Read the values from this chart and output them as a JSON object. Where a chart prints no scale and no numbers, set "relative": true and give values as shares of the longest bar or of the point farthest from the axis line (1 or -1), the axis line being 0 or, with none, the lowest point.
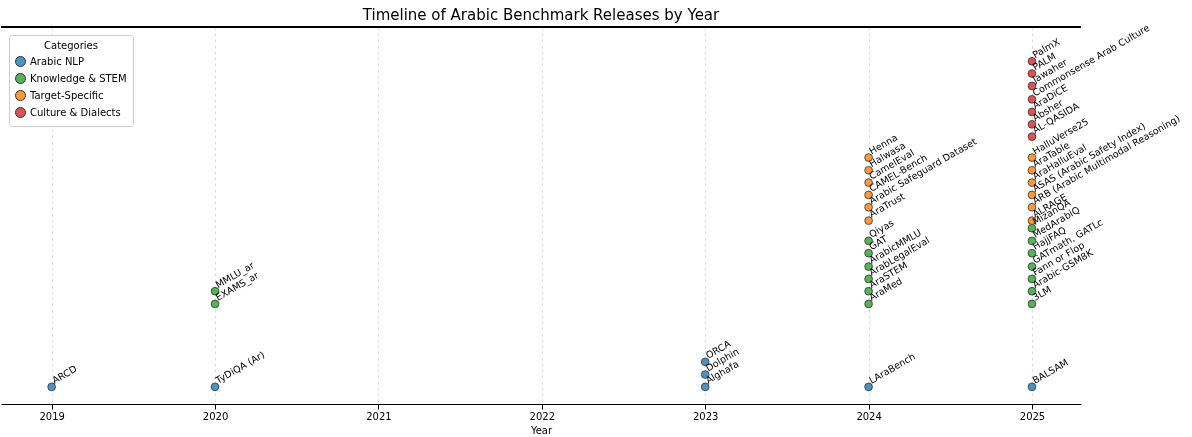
{
  "chart_data": {
    "type": "scatter",
    "title": "Timeline of Arabic Benchmark Releases by Year",
    "xlabel": "Year",
    "legend_title": "Categories",
    "legend": "top left",
    "grid": "x",
    "marker": "circle",
    "relative": true,
    "xlim": [
      2018.69,
      2025.3
    ],
    "xticks": [
      2019,
      2020,
      2021,
      2022,
      2023,
      2024,
      2025
    ],
    "series": [
      {
        "name": "Arabic NLP",
        "color": "#4c92c3",
        "x": [
          2019,
          2020,
          2023,
          2023,
          2023,
          2024,
          2025
        ],
        "values": [
          0.05,
          0.05,
          0.05,
          0.086,
          0.123,
          0.05,
          0.05
        ]
      },
      {
        "name": "Knowledge & STEM",
        "color": "#56b356",
        "x": [
          2020,
          2020,
          2024,
          2024,
          2024,
          2024,
          2024,
          2024,
          2025,
          2025,
          2025,
          2025,
          2025,
          2025,
          2025
        ],
        "values": [
          0.292,
          0.329,
          0.292,
          0.329,
          0.365,
          0.401,
          0.44,
          0.476,
          0.292,
          0.329,
          0.365,
          0.401,
          0.44,
          0.476,
          0.513
        ]
      },
      {
        "name": "Target-Specific",
        "color": "#ff993e",
        "x": [
          2024,
          2024,
          2024,
          2024,
          2024,
          2024,
          2025,
          2025,
          2025,
          2025,
          2025,
          2025
        ],
        "values": [
          0.535,
          0.574,
          0.61,
          0.646,
          0.682,
          0.719,
          0.535,
          0.574,
          0.61,
          0.646,
          0.682,
          0.719
        ]
      },
      {
        "name": "Culture & Dialects",
        "color": "#de5253",
        "x": [
          2025,
          2025,
          2025,
          2025,
          2025,
          2025,
          2025
        ],
        "values": [
          0.78,
          0.816,
          0.852,
          0.889,
          0.928,
          0.964,
          1.0
        ]
      }
    ],
    "annotations": [
      {
        "text": "ARCD",
        "x": 2019,
        "y": 0.05
      },
      {
        "text": "TyDiQA (Ar)",
        "x": 2020,
        "y": 0.05
      },
      {
        "text": "Alghafa",
        "x": 2023,
        "y": 0.05
      },
      {
        "text": "Dolphin",
        "x": 2023,
        "y": 0.086
      },
      {
        "text": "ORCA",
        "x": 2023,
        "y": 0.123
      },
      {
        "text": "LAraBench",
        "x": 2024,
        "y": 0.05
      },
      {
        "text": "BALSAM",
        "x": 2025,
        "y": 0.05
      },
      {
        "text": "EXAMS_ar",
        "x": 2020,
        "y": 0.292
      },
      {
        "text": "MMLU_ar",
        "x": 2020,
        "y": 0.329
      },
      {
        "text": "AraMed",
        "x": 2024,
        "y": 0.292
      },
      {
        "text": "AraSTEM",
        "x": 2024,
        "y": 0.329
      },
      {
        "text": "ArabLegalEval",
        "x": 2024,
        "y": 0.365
      },
      {
        "text": "ArabicMMLU",
        "x": 2024,
        "y": 0.401
      },
      {
        "text": "GAT",
        "x": 2024,
        "y": 0.44
      },
      {
        "text": "Qiyas",
        "x": 2024,
        "y": 0.476
      },
      {
        "text": "3LM",
        "x": 2025,
        "y": 0.292
      },
      {
        "text": "Arabic-GSM8K",
        "x": 2025,
        "y": 0.329
      },
      {
        "text": "Fann or Flop",
        "x": 2025,
        "y": 0.365
      },
      {
        "text": "GATmath, GATLc",
        "x": 2025,
        "y": 0.401
      },
      {
        "text": "HajjFAQ",
        "x": 2025,
        "y": 0.44
      },
      {
        "text": "MedArabiQ",
        "x": 2025,
        "y": 0.476
      },
      {
        "text": "MizanQA",
        "x": 2025,
        "y": 0.513
      },
      {
        "text": "AraTrust",
        "x": 2024,
        "y": 0.535
      },
      {
        "text": "Arabic Safeguard Dataset",
        "x": 2024,
        "y": 0.574
      },
      {
        "text": "CAMEL-Bench",
        "x": 2024,
        "y": 0.61
      },
      {
        "text": "CamelEval",
        "x": 2024,
        "y": 0.646
      },
      {
        "text": "Halwasa",
        "x": 2024,
        "y": 0.682
      },
      {
        "text": "Henna",
        "x": 2024,
        "y": 0.719
      },
      {
        "text": "ALRAGE",
        "x": 2025,
        "y": 0.535
      },
      {
        "text": "ARB (Arabic Multimodal Reasoning)",
        "x": 2025,
        "y": 0.574
      },
      {
        "text": "ASAS (Arabic Safety Index)",
        "x": 2025,
        "y": 0.61
      },
      {
        "text": "AraHalluEval",
        "x": 2025,
        "y": 0.646
      },
      {
        "text": "AraTable",
        "x": 2025,
        "y": 0.682
      },
      {
        "text": "HalluVerse25",
        "x": 2025,
        "y": 0.719
      },
      {
        "text": "AL-QASIDA",
        "x": 2025,
        "y": 0.78
      },
      {
        "text": "Absher",
        "x": 2025,
        "y": 0.816
      },
      {
        "text": "AraDiCE",
        "x": 2025,
        "y": 0.852
      },
      {
        "text": "Commonsense Arab Culture",
        "x": 2025,
        "y": 0.889
      },
      {
        "text": "Jawaher",
        "x": 2025,
        "y": 0.928
      },
      {
        "text": "PALM",
        "x": 2025,
        "y": 0.964
      },
      {
        "text": "PalmX",
        "x": 2025,
        "y": 1.0
      }
    ]
  }
}
